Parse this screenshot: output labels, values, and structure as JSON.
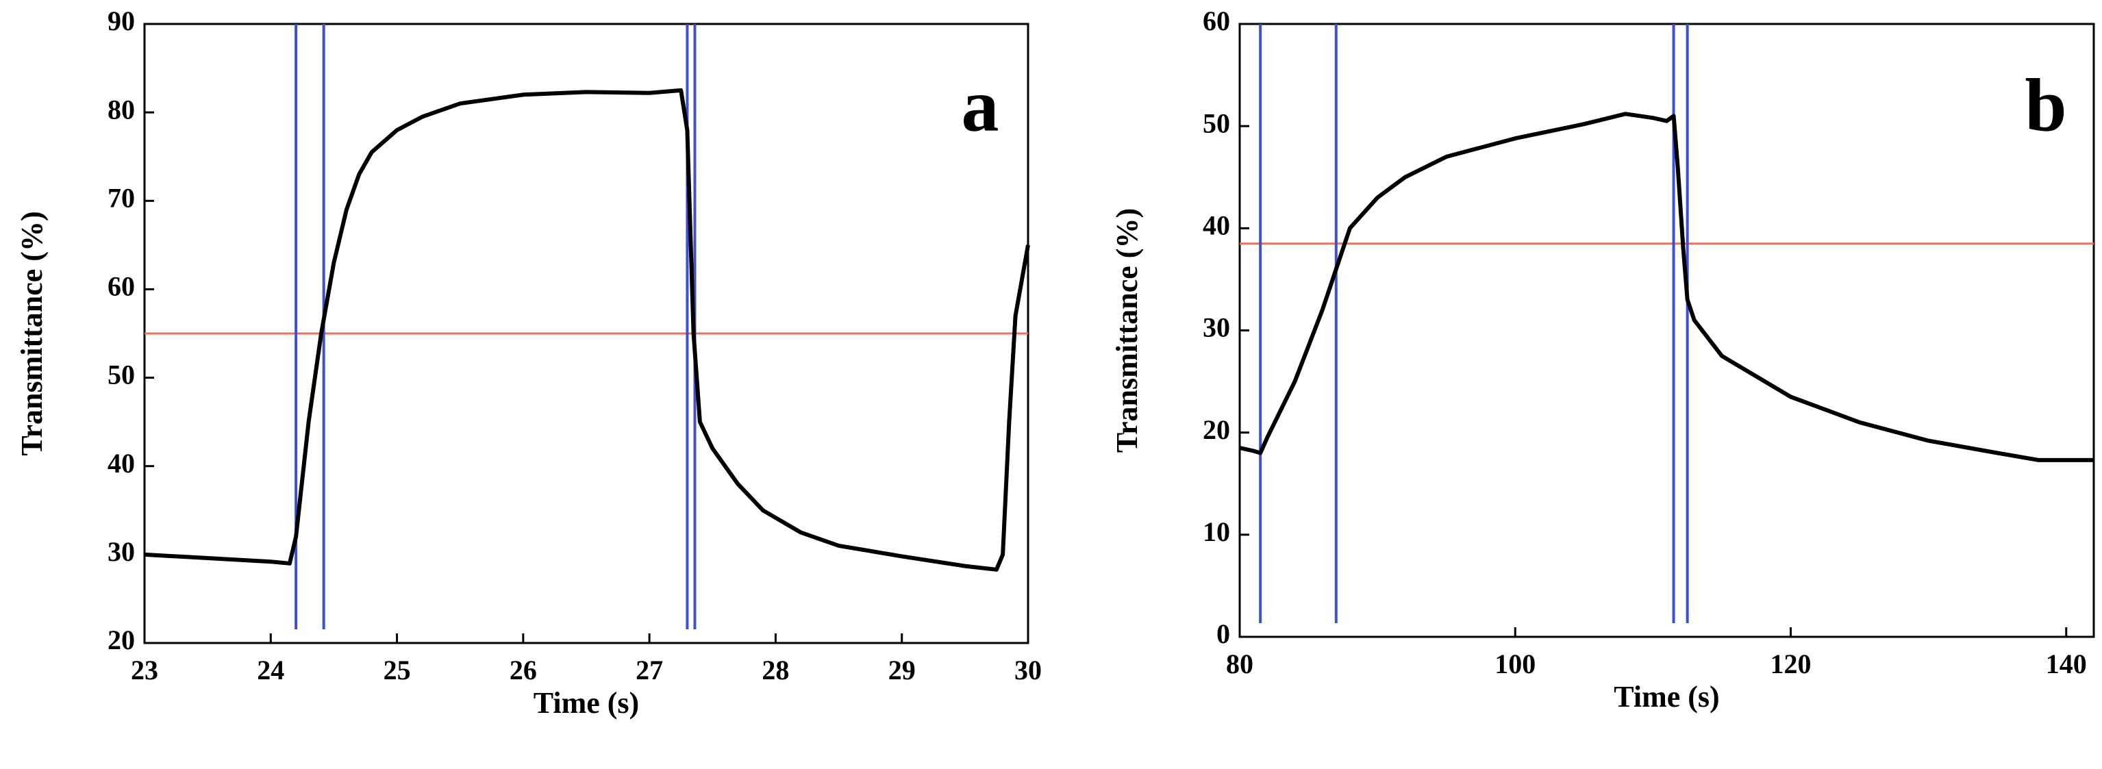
{
  "chart_data": [
    {
      "type": "line",
      "panel_label": "a",
      "xlabel": "Time (s)",
      "ylabel": "Transmittance (%)",
      "xlim": [
        23,
        30
      ],
      "xticks": [
        23,
        24,
        25,
        26,
        27,
        28,
        29,
        30
      ],
      "ylim": [
        20,
        90
      ],
      "yticks": [
        20,
        30,
        40,
        50,
        60,
        70,
        80,
        90
      ],
      "color": "#000000",
      "x": [
        23,
        23.5,
        24,
        24.15,
        24.2,
        24.3,
        24.4,
        24.5,
        24.6,
        24.7,
        24.8,
        25,
        25.2,
        25.5,
        26,
        26.5,
        27,
        27.25,
        27.3,
        27.35,
        27.4,
        27.5,
        27.7,
        27.9,
        28.2,
        28.5,
        29,
        29.5,
        29.75,
        29.8,
        29.85,
        29.9,
        30
      ],
      "values": [
        30,
        29.6,
        29.2,
        29,
        32,
        45,
        55,
        63,
        69,
        73,
        75.5,
        78,
        79.5,
        81,
        82,
        82.3,
        82.2,
        82.5,
        78,
        55,
        45,
        42,
        38,
        35,
        32.5,
        31,
        29.8,
        28.7,
        28.3,
        30,
        45,
        57,
        65
      ],
      "hline": {
        "value": 55,
        "color": "#e8735a"
      },
      "vlines": {
        "values": [
          24.2,
          24.42,
          27.3,
          27.36
        ],
        "color": "#3f4fd0"
      }
    },
    {
      "type": "line",
      "panel_label": "b",
      "xlabel": "Time (s)",
      "ylabel": "Transmittance (%)",
      "xlim": [
        80,
        142
      ],
      "xticks": [
        80,
        100,
        120,
        140
      ],
      "ylim": [
        0,
        60
      ],
      "yticks": [
        0,
        10,
        20,
        30,
        40,
        50,
        60
      ],
      "color": "#000000",
      "x": [
        80,
        81,
        81.5,
        82,
        84,
        86,
        87,
        88,
        90,
        92,
        95,
        100,
        105,
        108,
        110,
        111,
        111.5,
        111.8,
        112.2,
        112.5,
        113,
        115,
        120,
        125,
        130,
        135,
        138,
        142
      ],
      "values": [
        18.5,
        18.2,
        18,
        19.5,
        25,
        32,
        36,
        40,
        43,
        45,
        47,
        48.8,
        50.2,
        51.2,
        50.8,
        50.5,
        51,
        46,
        38,
        33,
        31,
        27.5,
        23.5,
        21,
        19.2,
        18,
        17.3,
        17.3
      ],
      "hline": {
        "value": 38.5,
        "color": "#e8735a"
      },
      "vlines": {
        "values": [
          81.5,
          87,
          111.5,
          112.5
        ],
        "color": "#3f4fd0"
      }
    }
  ]
}
